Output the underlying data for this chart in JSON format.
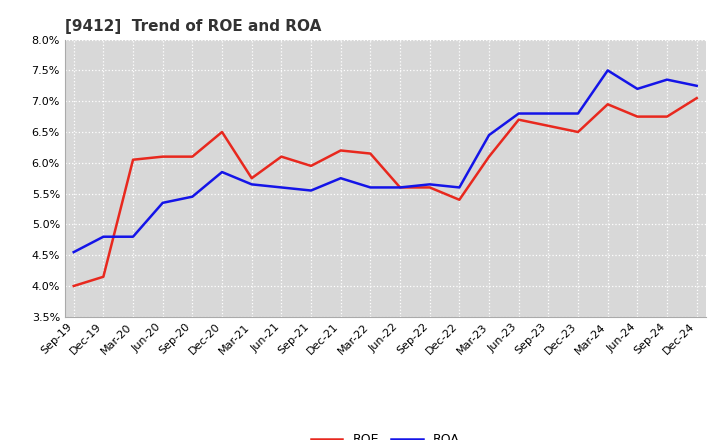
{
  "title": "[9412]  Trend of ROE and ROA",
  "labels": [
    "Sep-19",
    "Dec-19",
    "Mar-20",
    "Jun-20",
    "Sep-20",
    "Dec-20",
    "Mar-21",
    "Jun-21",
    "Sep-21",
    "Dec-21",
    "Mar-22",
    "Jun-22",
    "Sep-22",
    "Dec-22",
    "Mar-23",
    "Jun-23",
    "Sep-23",
    "Dec-23",
    "Mar-24",
    "Jun-24",
    "Sep-24",
    "Dec-24"
  ],
  "ROE": [
    4.0,
    4.15,
    6.05,
    6.1,
    6.1,
    6.5,
    5.75,
    6.1,
    5.95,
    6.2,
    6.15,
    5.6,
    5.6,
    5.4,
    6.1,
    6.7,
    6.6,
    6.5,
    6.95,
    6.75,
    6.75,
    7.05
  ],
  "ROA": [
    4.55,
    4.8,
    4.8,
    5.35,
    5.45,
    5.85,
    5.65,
    5.6,
    5.55,
    5.75,
    5.6,
    5.6,
    5.65,
    5.6,
    6.45,
    6.8,
    6.8,
    6.8,
    7.5,
    7.2,
    7.35,
    7.25
  ],
  "ROE_color": "#e8281e",
  "ROA_color": "#1414e8",
  "bg_color": "#ffffff",
  "plot_bg_color": "#d8d8d8",
  "grid_color": "#ffffff",
  "ylim": [
    3.5,
    8.0
  ],
  "yticks": [
    3.5,
    4.0,
    4.5,
    5.0,
    5.5,
    6.0,
    6.5,
    7.0,
    7.5,
    8.0
  ],
  "legend_ROE": "ROE",
  "legend_ROA": "ROA",
  "title_fontsize": 11,
  "tick_fontsize": 8,
  "legend_fontsize": 9,
  "linewidth": 1.8
}
